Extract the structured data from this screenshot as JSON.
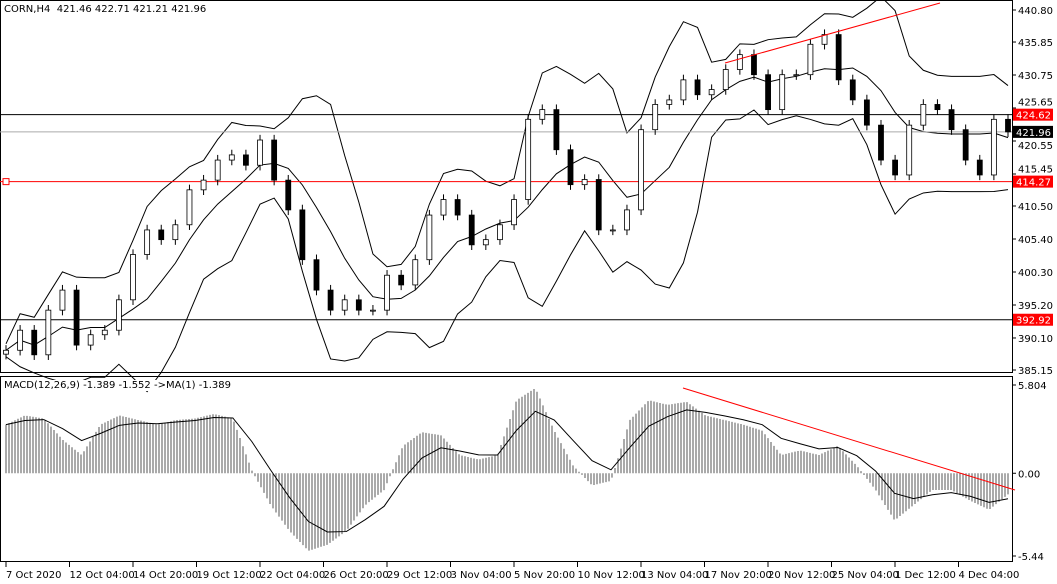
{
  "header": {
    "symbol": "CORN,H4",
    "ohlc": "421.46 422.71 421.21 421.96"
  },
  "macd_header": {
    "label": "MACD(12,26,9) -1.389 -1.552  ->MA(1) -1.389"
  },
  "colors": {
    "line": "#000000",
    "trend": "#ff0000",
    "label_bg": "#ff0000",
    "current_bg": "#000000",
    "grid": "#000000"
  },
  "chart_data": [
    {
      "type": "candlestick",
      "title": "CORN,H4",
      "ylim": [
        385.15,
        440.8
      ],
      "y_ticks": [
        "440.80",
        "435.85",
        "430.75",
        "425.65",
        "420.55",
        "415.45",
        "410.50",
        "405.40",
        "400.30",
        "395.20",
        "390.10",
        "385.15"
      ],
      "x_ticks": [
        "7 Oct 2020",
        "12 Oct 04:00",
        "14 Oct 20:00",
        "19 Oct 12:00",
        "22 Oct 04:00",
        "26 Oct 20:00",
        "29 Oct 12:00",
        "3 Nov 04:00",
        "5 Nov 20:00",
        "10 Nov 12:00",
        "13 Nov 04:00",
        "17 Nov 20:00",
        "20 Nov 12:00",
        "25 Nov 04:00",
        "1 Dec 12:00",
        "4 Dec 04:00"
      ],
      "closes": [
        388.2,
        391.3,
        387.5,
        394.4,
        397.5,
        389,
        390.6,
        391.3,
        396,
        403,
        406.8,
        405.3,
        407.6,
        413,
        414.5,
        417.6,
        418.4,
        416.8,
        420.7,
        414.5,
        409.9,
        402.2,
        397.5,
        394.4,
        396,
        394.4,
        394.4,
        399.8,
        398.3,
        402.2,
        409.1,
        411.5,
        409.1,
        404.5,
        405.3,
        407.6,
        411.5,
        423.9,
        425.4,
        419.2,
        413.8,
        414.6,
        406.8,
        406.8,
        409.9,
        422.3,
        426.2,
        426.9,
        430,
        427.7,
        428.5,
        431.6,
        433.9,
        430.8,
        425.4,
        430.8,
        430.8,
        435.5,
        437,
        430,
        426.9,
        423,
        417.6,
        415.3,
        423,
        426.2,
        425.4,
        422.3,
        417.6,
        415.3,
        423.9,
        421.96
      ],
      "indicators": "Bollinger Bands",
      "levels": [
        {
          "value": 424.62,
          "label": "424.62",
          "color": "#000000"
        },
        {
          "value": 414.27,
          "label": "414.27",
          "color": "#ff0000"
        },
        {
          "value": 392.92,
          "label": "392.92",
          "color": "#000000"
        }
      ],
      "current_price": {
        "value": 421.96,
        "label": "421.96"
      }
    },
    {
      "type": "bar",
      "title": "MACD(12,26,9) -1.389 -1.552  ->MA(1) -1.389",
      "ylim": [
        -5.44,
        5.804
      ],
      "y_ticks": [
        "5.804",
        "0.00",
        "-5.44"
      ],
      "histogram": [
        3.2,
        3.8,
        3.6,
        2.2,
        1.2,
        3.2,
        3.8,
        3.5,
        3.2,
        3.5,
        3.6,
        3.9,
        3.6,
        0.2,
        -2.1,
        -3.8,
        -5.1,
        -4.7,
        -3.8,
        -2.1,
        -1.1,
        1.8,
        2.7,
        2.5,
        1.2,
        0.9,
        1.2,
        4.8,
        5.6,
        2.8,
        0.5,
        -0.8,
        -0.5,
        3.5,
        4.8,
        4.5,
        4.7,
        3.8,
        3.5,
        3.2,
        2.8,
        1.2,
        1.5,
        1.2,
        1.8,
        0.5,
        -1.1,
        -3.1,
        -2.1,
        -1.1,
        -1.1,
        -1.8,
        -2.4,
        -1.389
      ],
      "signal_last": -1.552
    }
  ]
}
